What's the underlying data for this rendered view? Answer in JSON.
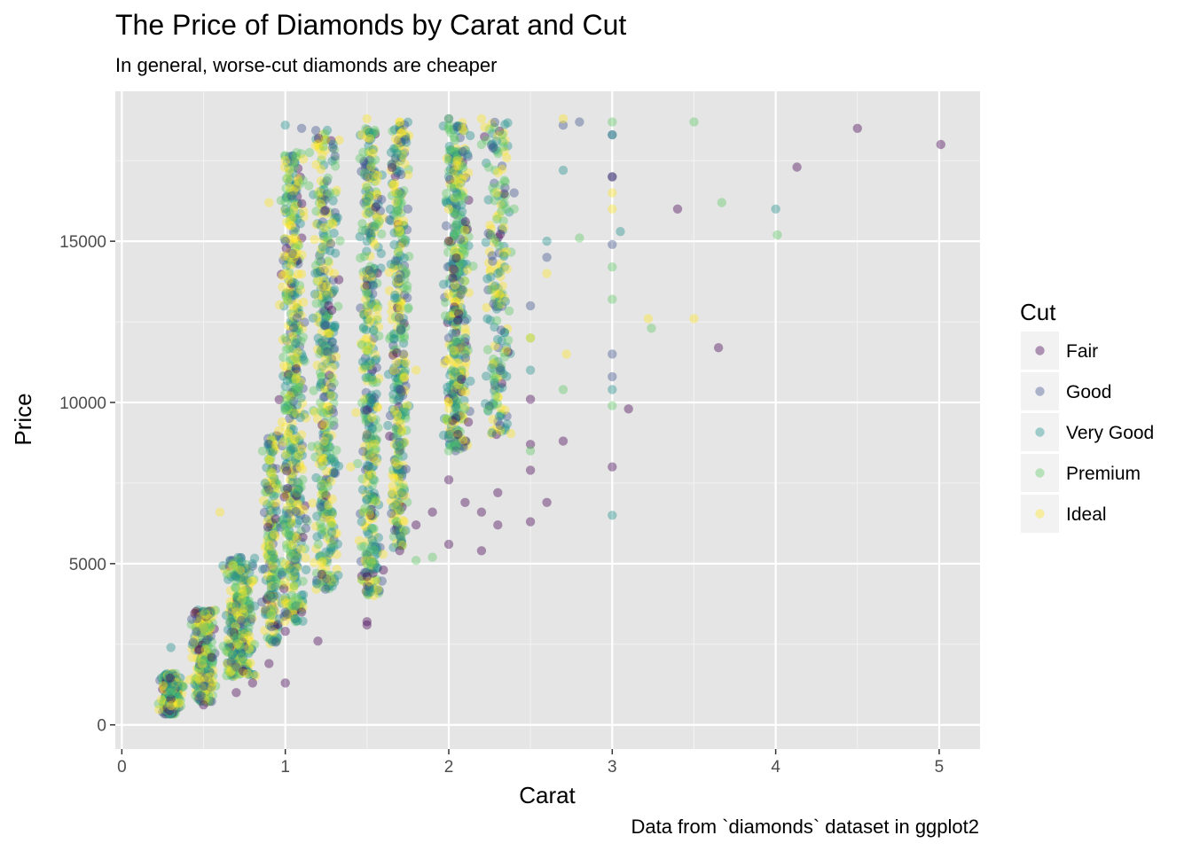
{
  "chart_data": {
    "type": "scatter",
    "title": "The Price of Diamonds by Carat and Cut",
    "subtitle": "In general, worse-cut diamonds are cheaper",
    "caption": "Data from `diamonds` dataset in ggplot2",
    "xlabel": "Carat",
    "ylabel": "Price",
    "xlim": [
      -0.04,
      5.25
    ],
    "ylim": [
      -750,
      19650
    ],
    "x_ticks": [
      0,
      1,
      2,
      3,
      4,
      5
    ],
    "x_tick_labels": [
      "0",
      "1",
      "2",
      "3",
      "4",
      "5"
    ],
    "y_ticks": [
      0,
      5000,
      10000,
      15000
    ],
    "y_tick_labels": [
      "0",
      "5000",
      "10000",
      "15000"
    ],
    "grid": true,
    "legend": {
      "title": "Cut",
      "position": "right",
      "entries": [
        {
          "label": "Fair",
          "color": "#440154"
        },
        {
          "label": "Good",
          "color": "#3b528b"
        },
        {
          "label": "Very Good",
          "color": "#21908c"
        },
        {
          "label": "Premium",
          "color": "#5dc863"
        },
        {
          "label": "Ideal",
          "color": "#fde725"
        }
      ]
    },
    "point_alpha": 0.4,
    "series": [
      {
        "name": "Fair",
        "color": "#440154",
        "points": [
          [
            0.3,
            800
          ],
          [
            0.5,
            620
          ],
          [
            0.7,
            1000
          ],
          [
            0.8,
            1300
          ],
          [
            0.9,
            1900
          ],
          [
            1.0,
            2900
          ],
          [
            1.1,
            3500
          ],
          [
            1.5,
            3200
          ],
          [
            1.5,
            4600
          ],
          [
            1.6,
            4800
          ],
          [
            1.7,
            5400
          ],
          [
            1.8,
            6200
          ],
          [
            1.9,
            6600
          ],
          [
            2.0,
            5600
          ],
          [
            2.1,
            6900
          ],
          [
            2.2,
            6600
          ],
          [
            2.3,
            7200
          ],
          [
            2.2,
            5400
          ],
          [
            2.5,
            7900
          ],
          [
            2.5,
            8700
          ],
          [
            2.5,
            6300
          ],
          [
            2.7,
            8800
          ],
          [
            2.5,
            10100
          ],
          [
            2.6,
            6900
          ],
          [
            3.0,
            8000
          ],
          [
            3.0,
            17000
          ],
          [
            3.1,
            9800
          ],
          [
            3.4,
            16000
          ],
          [
            3.65,
            11700
          ],
          [
            4.13,
            17300
          ],
          [
            4.5,
            18500
          ],
          [
            5.01,
            18000
          ],
          [
            2.0,
            15000
          ],
          [
            1.2,
            2600
          ],
          [
            1.0,
            1300
          ],
          [
            1.5,
            3100
          ],
          [
            2.0,
            7600
          ],
          [
            2.3,
            6200
          ]
        ]
      },
      {
        "name": "Good",
        "color": "#3b528b",
        "points": [
          [
            0.3,
            500
          ],
          [
            0.5,
            1200
          ],
          [
            0.7,
            1800
          ],
          [
            1.0,
            3500
          ],
          [
            1.0,
            8000
          ],
          [
            1.0,
            15000
          ],
          [
            1.1,
            18500
          ],
          [
            1.5,
            9000
          ],
          [
            1.5,
            17000
          ],
          [
            2.0,
            12000
          ],
          [
            2.0,
            18800
          ],
          [
            2.5,
            13000
          ],
          [
            2.7,
            18600
          ],
          [
            2.8,
            18700
          ],
          [
            3.0,
            18300
          ],
          [
            3.0,
            14900
          ],
          [
            3.0,
            11500
          ],
          [
            3.0,
            10800
          ],
          [
            3.0,
            17000
          ],
          [
            2.4,
            16500
          ],
          [
            2.6,
            14500
          ],
          [
            1.75,
            16000
          ]
        ]
      },
      {
        "name": "Very Good",
        "color": "#21908c",
        "points": [
          [
            0.3,
            2400
          ],
          [
            0.5,
            3000
          ],
          [
            0.7,
            3700
          ],
          [
            1.0,
            10500
          ],
          [
            1.0,
            16000
          ],
          [
            1.0,
            18600
          ],
          [
            1.5,
            7000
          ],
          [
            1.5,
            15000
          ],
          [
            2.0,
            9000
          ],
          [
            2.0,
            17000
          ],
          [
            2.5,
            11000
          ],
          [
            2.6,
            15000
          ],
          [
            2.7,
            17200
          ],
          [
            3.0,
            6500
          ],
          [
            3.0,
            10400
          ],
          [
            3.05,
            15300
          ],
          [
            4.0,
            16000
          ],
          [
            3.0,
            18300
          ],
          [
            2.3,
            14000
          ],
          [
            2.1,
            11500
          ],
          [
            1.3,
            13500
          ],
          [
            0.8,
            5000
          ]
        ]
      },
      {
        "name": "Premium",
        "color": "#5dc863",
        "points": [
          [
            0.3,
            1000
          ],
          [
            0.5,
            2000
          ],
          [
            0.7,
            2700
          ],
          [
            0.9,
            4000
          ],
          [
            1.0,
            6000
          ],
          [
            1.0,
            12000
          ],
          [
            1.5,
            5000
          ],
          [
            1.5,
            13000
          ],
          [
            2.0,
            8500
          ],
          [
            2.0,
            17500
          ],
          [
            2.0,
            18800
          ],
          [
            2.5,
            8500
          ],
          [
            2.5,
            12000
          ],
          [
            2.7,
            10400
          ],
          [
            2.8,
            15100
          ],
          [
            3.0,
            9900
          ],
          [
            3.0,
            13200
          ],
          [
            3.0,
            14200
          ],
          [
            3.0,
            18700
          ],
          [
            3.24,
            12300
          ],
          [
            3.5,
            18700
          ],
          [
            3.67,
            16200
          ],
          [
            4.01,
            15200
          ],
          [
            2.2,
            18000
          ],
          [
            2.4,
            16000
          ],
          [
            1.8,
            5100
          ],
          [
            1.9,
            5200
          ]
        ]
      },
      {
        "name": "Ideal",
        "color": "#fde725",
        "points": [
          [
            0.3,
            600
          ],
          [
            0.5,
            3000
          ],
          [
            0.6,
            6600
          ],
          [
            0.7,
            3500
          ],
          [
            1.0,
            5000
          ],
          [
            1.0,
            14000
          ],
          [
            1.0,
            17500
          ],
          [
            1.2,
            18000
          ],
          [
            1.3,
            14000
          ],
          [
            1.5,
            12000
          ],
          [
            1.5,
            18800
          ],
          [
            1.7,
            18700
          ],
          [
            2.0,
            10000
          ],
          [
            2.0,
            16000
          ],
          [
            2.2,
            18800
          ],
          [
            2.5,
            12000
          ],
          [
            2.6,
            14000
          ],
          [
            2.72,
            11500
          ],
          [
            3.0,
            16500
          ],
          [
            3.0,
            16000
          ],
          [
            3.22,
            12600
          ],
          [
            3.5,
            12600
          ],
          [
            2.7,
            18800
          ],
          [
            0.9,
            16200
          ],
          [
            1.1,
            9000
          ],
          [
            1.4,
            8000
          ],
          [
            1.8,
            11000
          ]
        ]
      }
    ]
  }
}
